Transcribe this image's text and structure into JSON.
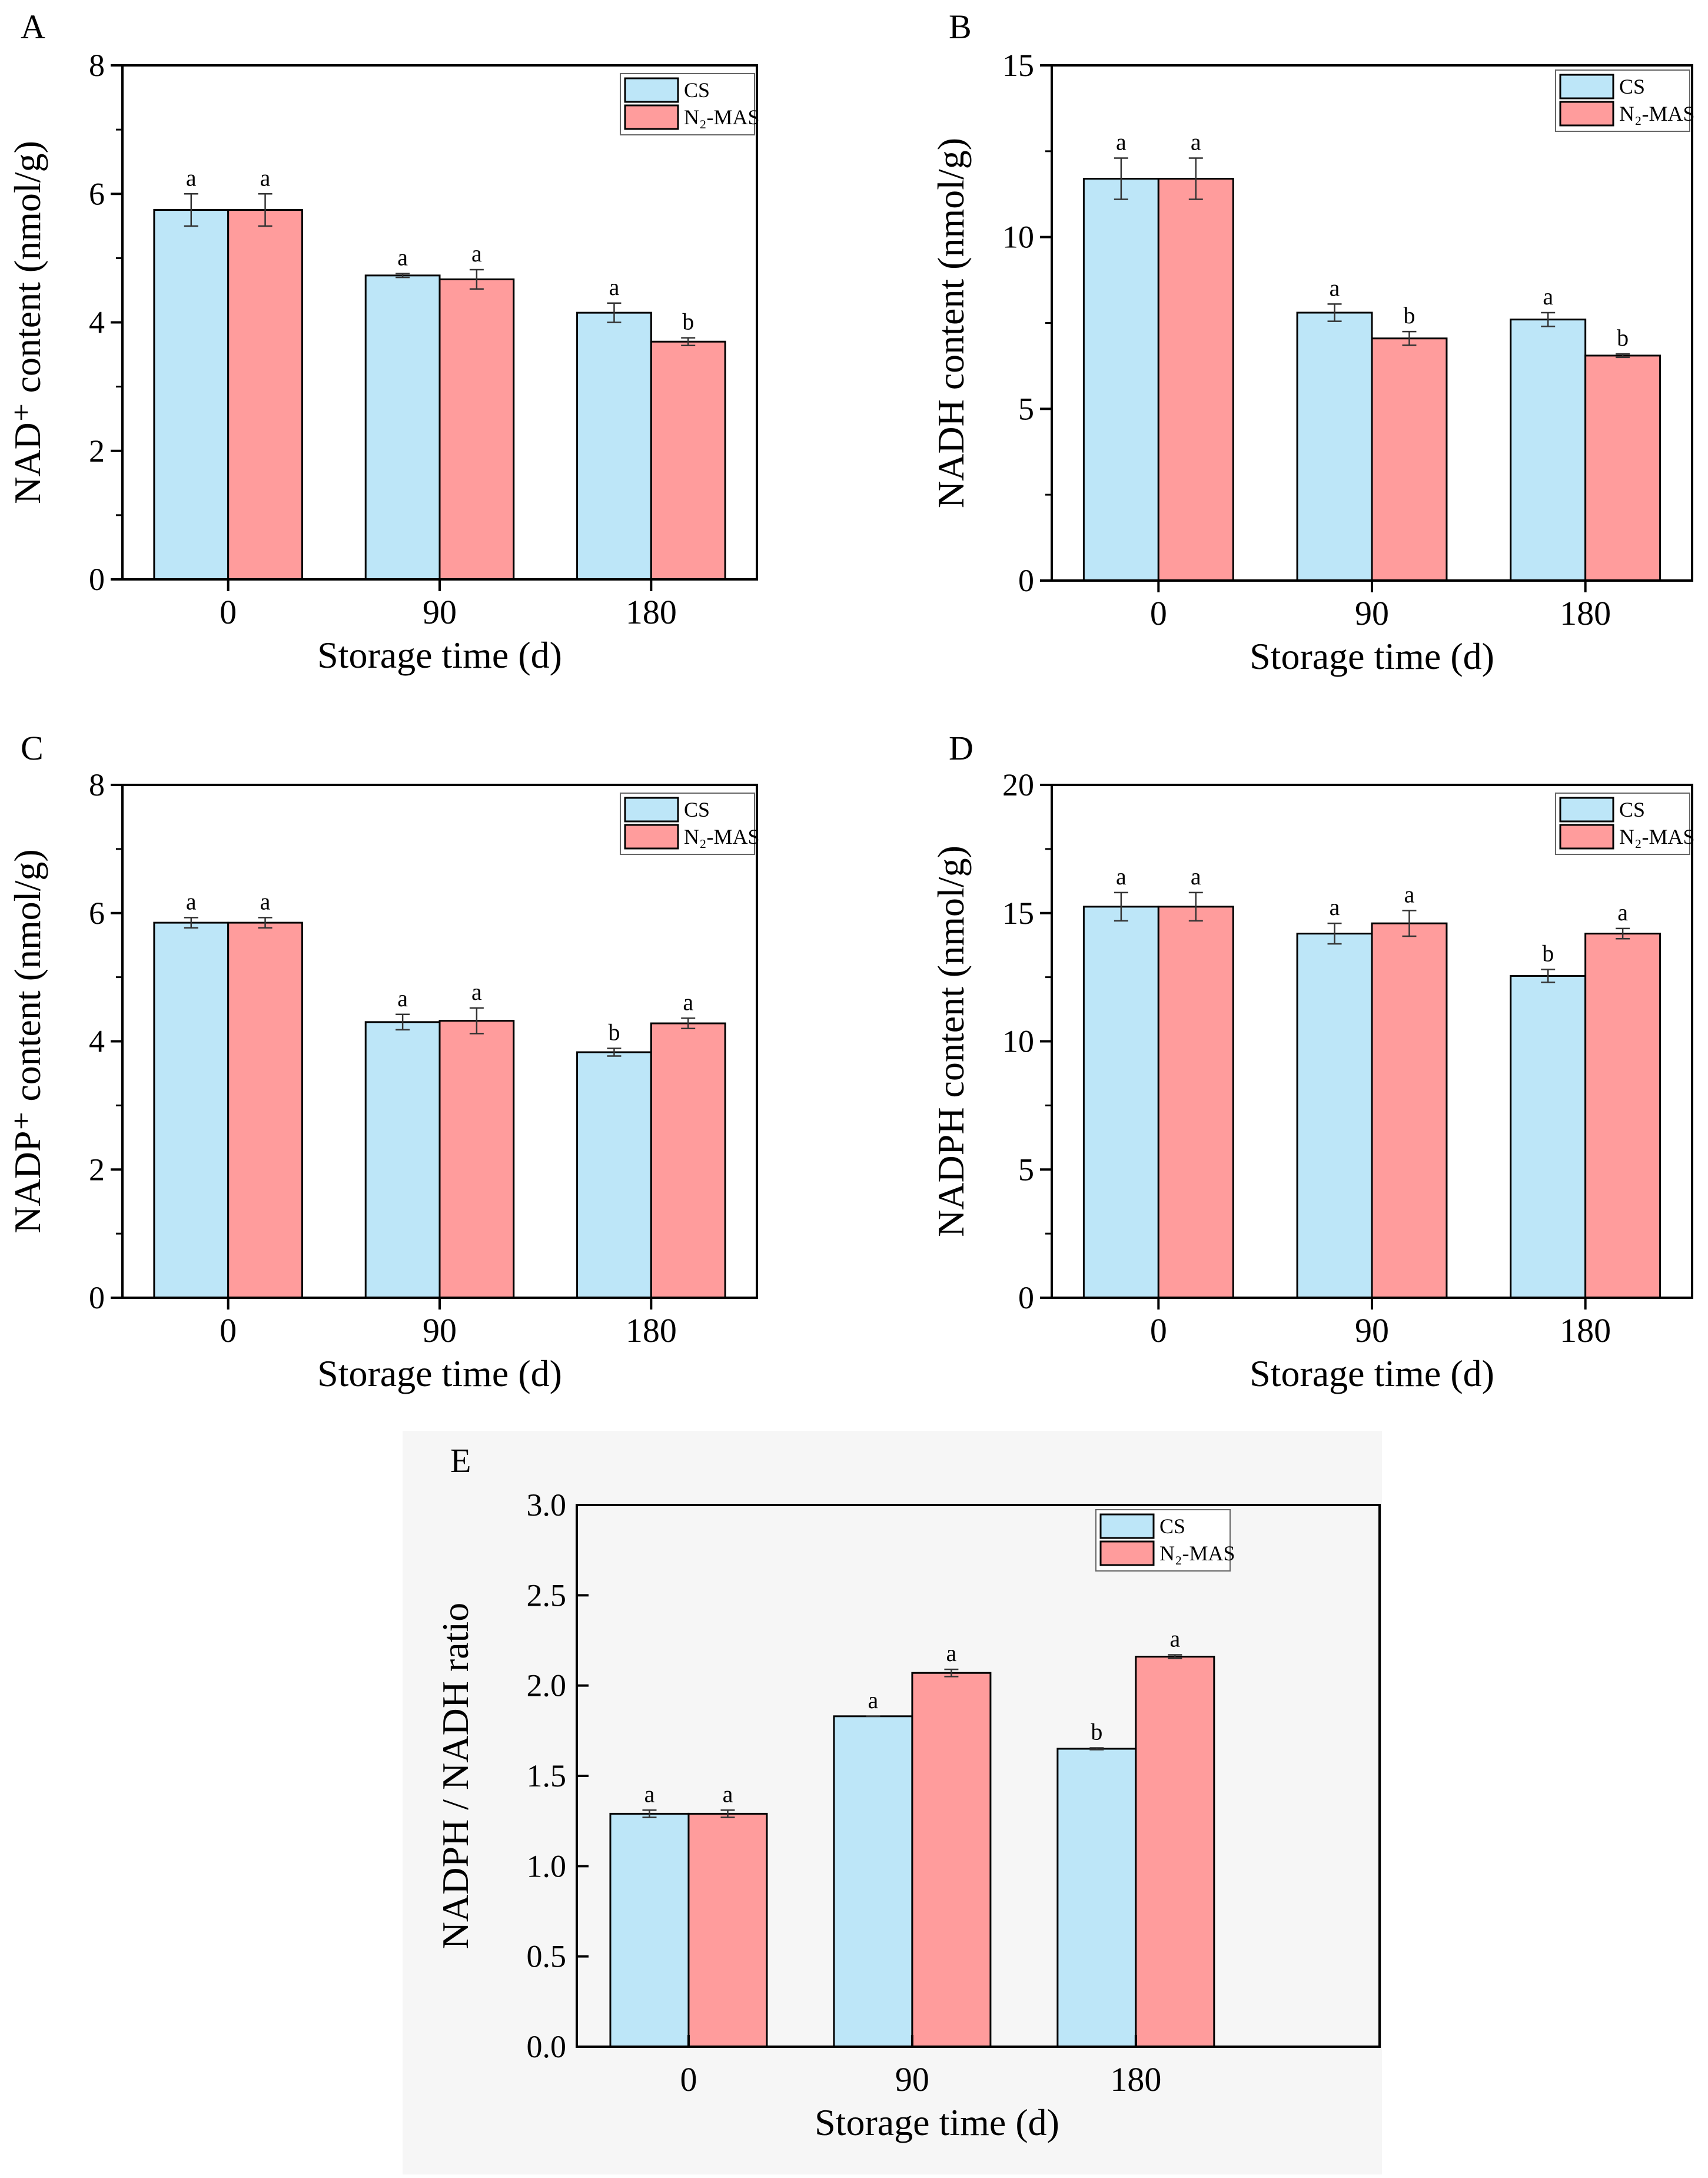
{
  "legend": [
    "CS",
    "N₂-MAS"
  ],
  "colors": {
    "CS": "#bde6f8",
    "N2MAS": "#ff9c9c",
    "panel_e_bg": "#f6f6f6"
  },
  "chart_data": [
    {
      "panel": "A",
      "type": "bar",
      "categories": [
        "0",
        "90",
        "180"
      ],
      "xlabel": "Storage time (d)",
      "ylabel": "NAD⁺ content (nmol/g)",
      "ylim": [
        0,
        8
      ],
      "yticks": [
        0,
        2,
        4,
        6,
        8
      ],
      "ytick_labels": [
        "0",
        "2",
        "4",
        "6",
        "8"
      ],
      "series": [
        {
          "name": "CS",
          "values": [
            5.75,
            4.73,
            4.15
          ],
          "errors": [
            0.25,
            0.03,
            0.15
          ],
          "letters": [
            "a",
            "a",
            "a"
          ]
        },
        {
          "name": "N₂-MAS",
          "values": [
            5.75,
            4.67,
            3.7
          ],
          "errors": [
            0.25,
            0.15,
            0.06
          ],
          "letters": [
            "a",
            "a",
            "b"
          ]
        }
      ]
    },
    {
      "panel": "B",
      "type": "bar",
      "categories": [
        "0",
        "90",
        "180"
      ],
      "xlabel": "Storage time (d)",
      "ylabel": "NADH content (nmol/g)",
      "ylim": [
        0,
        15
      ],
      "yticks": [
        0,
        5,
        10,
        15
      ],
      "ytick_labels": [
        "0",
        "5",
        "10",
        "15"
      ],
      "series": [
        {
          "name": "CS",
          "values": [
            11.7,
            7.8,
            7.6
          ],
          "errors": [
            0.6,
            0.25,
            0.2
          ],
          "letters": [
            "a",
            "a",
            "a"
          ]
        },
        {
          "name": "N₂-MAS",
          "values": [
            11.7,
            7.05,
            6.55
          ],
          "errors": [
            0.6,
            0.2,
            0.05
          ],
          "letters": [
            "a",
            "b",
            "b"
          ]
        }
      ]
    },
    {
      "panel": "C",
      "type": "bar",
      "categories": [
        "0",
        "90",
        "180"
      ],
      "xlabel": "Storage time (d)",
      "ylabel": "NADP⁺ content (nmol/g)",
      "ylim": [
        0,
        8
      ],
      "yticks": [
        0,
        2,
        4,
        6,
        8
      ],
      "ytick_labels": [
        "0",
        "2",
        "4",
        "6",
        "8"
      ],
      "series": [
        {
          "name": "CS",
          "values": [
            5.85,
            4.3,
            3.83
          ],
          "errors": [
            0.08,
            0.12,
            0.06
          ],
          "letters": [
            "a",
            "a",
            "b"
          ]
        },
        {
          "name": "N₂-MAS",
          "values": [
            5.85,
            4.32,
            4.28
          ],
          "errors": [
            0.08,
            0.2,
            0.08
          ],
          "letters": [
            "a",
            "a",
            "a"
          ]
        }
      ]
    },
    {
      "panel": "D",
      "type": "bar",
      "categories": [
        "0",
        "90",
        "180"
      ],
      "xlabel": "Storage time (d)",
      "ylabel": "NADPH content (nmol/g)",
      "ylim": [
        0,
        20
      ],
      "yticks": [
        0,
        5,
        10,
        15,
        20
      ],
      "ytick_labels": [
        "0",
        "5",
        "10",
        "15",
        "20"
      ],
      "series": [
        {
          "name": "CS",
          "values": [
            15.25,
            14.2,
            12.55
          ],
          "errors": [
            0.55,
            0.4,
            0.25
          ],
          "letters": [
            "a",
            "a",
            "b"
          ]
        },
        {
          "name": "N₂-MAS",
          "values": [
            15.25,
            14.6,
            14.2
          ],
          "errors": [
            0.55,
            0.5,
            0.2
          ],
          "letters": [
            "a",
            "a",
            "a"
          ]
        }
      ]
    },
    {
      "panel": "E",
      "type": "bar",
      "categories": [
        "0",
        "90",
        "180"
      ],
      "xlabel": "Storage time (d)",
      "ylabel": "NADPH / NADH ratio",
      "ylim": [
        0,
        3
      ],
      "yticks": [
        0,
        0.5,
        1,
        1.5,
        2,
        2.5,
        3
      ],
      "ytick_labels": [
        "0.0",
        "0.5",
        "1.0",
        "1.5",
        "2.0",
        "2.5",
        "3.0"
      ],
      "series": [
        {
          "name": "CS",
          "values": [
            1.29,
            1.83,
            1.65
          ],
          "errors": [
            0.02,
            0.0,
            0.005
          ],
          "letters": [
            "a",
            "a",
            "b"
          ]
        },
        {
          "name": "N₂-MAS",
          "values": [
            1.29,
            2.07,
            2.16
          ],
          "errors": [
            0.02,
            0.02,
            0.01
          ],
          "letters": [
            "a",
            "a",
            "a"
          ]
        }
      ]
    }
  ]
}
